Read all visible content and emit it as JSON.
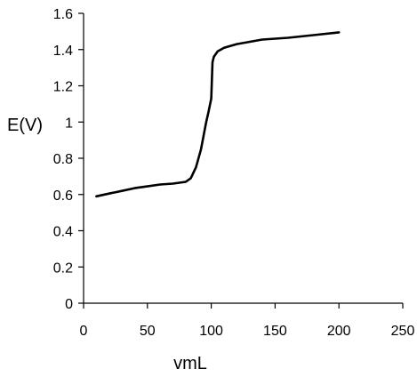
{
  "chart_data": {
    "type": "line",
    "title": "",
    "xlabel": "vmL",
    "ylabel": "E(V)",
    "xlim": [
      0,
      250
    ],
    "ylim": [
      0,
      1.6
    ],
    "xticks": [
      "0",
      "50",
      "100",
      "150",
      "200",
      "250"
    ],
    "yticks": [
      "0",
      "0.2",
      "0.4",
      "0.6",
      "0.8",
      "1",
      "1.2",
      "1.4",
      "1.6"
    ],
    "grid": false,
    "legend": "none",
    "line_color": "#000000",
    "series": [
      {
        "x": [
          10,
          20,
          30,
          40,
          50,
          60,
          70,
          80,
          84,
          88,
          92,
          96,
          98,
          100,
          101,
          102,
          105,
          110,
          120,
          140,
          160,
          180,
          200
        ],
        "y": [
          0.59,
          0.605,
          0.62,
          0.635,
          0.645,
          0.655,
          0.66,
          0.67,
          0.69,
          0.75,
          0.85,
          1.0,
          1.06,
          1.13,
          1.33,
          1.36,
          1.39,
          1.41,
          1.43,
          1.455,
          1.465,
          1.48,
          1.495
        ]
      }
    ]
  }
}
